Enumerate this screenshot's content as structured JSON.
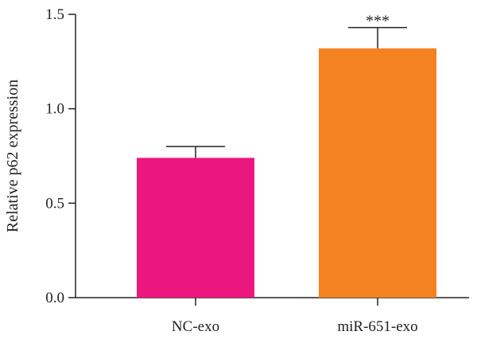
{
  "chart_data": {
    "type": "bar",
    "categories": [
      "NC-exo",
      "miR-651-exo"
    ],
    "values": [
      0.74,
      1.32
    ],
    "errors": [
      0.06,
      0.11
    ],
    "colors": [
      "#EC167F",
      "#F58220"
    ],
    "annotations": [
      "",
      "***"
    ],
    "title": "",
    "xlabel": "",
    "ylabel": "Relative p62 expression",
    "ylim": [
      0,
      1.5
    ],
    "yticks": [
      0.0,
      0.5,
      1.0,
      1.5
    ],
    "ytick_labels": [
      "0.0",
      "0.5",
      "1.0",
      "1.5"
    ],
    "grid": false,
    "legend": "none"
  }
}
